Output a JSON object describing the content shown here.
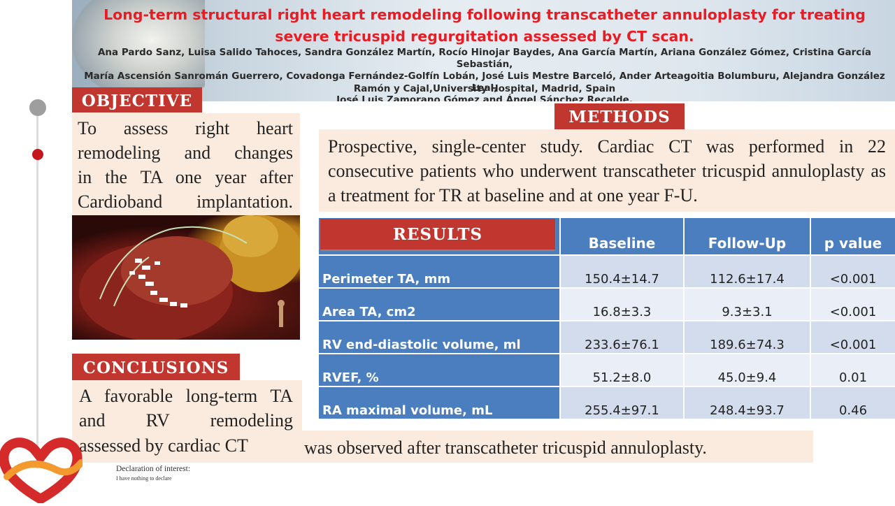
{
  "header": {
    "title": "Long-term structural right heart remodeling following transcatheter annuloplasty for treating severe tricuspid regurgitation assessed by CT scan.",
    "authors_line1": "Ana Pardo Sanz, Luisa Salido Tahoces, Sandra González Martín, Rocío Hinojar Baydes, Ana García Martín, Ariana González Gómez, Cristina García Sebastián,",
    "authors_line2": "María Ascensión Sanromán Guerrero, Covadonga Fernández-Golfín Lobán, José Luis Mestre Barceló, Ander Arteagoitia Bolumburu, Alejandra González Leal,",
    "authors_line3": "José Luis Zamorano Gómez and Ángel Sánchez Recalde.",
    "affiliation": "Ramón y Cajal,University Hospital, Madrid, Spain"
  },
  "objective": {
    "heading": "OBJECTIVE",
    "lines": [
      "To assess right heart",
      "remodeling and changes",
      "in the TA one year after"
    ],
    "last_line": "Cardioband implantation."
  },
  "methods": {
    "heading": "METHODS",
    "text": "Prospective, single-center study. Cardiac CT was performed in 22 consecutive patients who underwent transcatheter tricuspid annuloplasty  as a treatment for TR at baseline and at one year F-U."
  },
  "results": {
    "heading": "RESULTS",
    "columns": [
      "Baseline",
      "Follow-Up",
      "p value"
    ],
    "rows": [
      {
        "label": "Perimeter TA, mm",
        "baseline": "150.4±14.7",
        "followup": "112.6±17.4",
        "p": "<0.001"
      },
      {
        "label": "Area TA, cm2",
        "baseline": "16.8±3.3",
        "followup": "9.3±3.1",
        "p": "<0.001"
      },
      {
        "label": "RV end-diastolic volume, ml",
        "baseline": "233.6±76.1",
        "followup": "189.6±74.3",
        "p": "<0.001"
      },
      {
        "label": "RVEF, %",
        "baseline": "51.2±8.0",
        "followup": "45.0±9.4",
        "p": "0.01"
      },
      {
        "label": "RA maximal volume, mL",
        "baseline": "255.4±97.1",
        "followup": "248.4±93.7",
        "p": "0.46"
      }
    ]
  },
  "conclusions": {
    "heading": "CONCLUSIONS",
    "line1": "A favorable long-term TA",
    "line2": "and RV remodeling",
    "line3": "assessed by cardiac CT",
    "line4": "was observed after transcatheter tricuspid annuloplasty."
  },
  "declaration": {
    "title": "Declaration of interest:",
    "text": "I have nothing to declare"
  },
  "colors": {
    "title_red": "#e81c24",
    "section_red": "#c1372f",
    "table_blue": "#4a7ebf",
    "box_peach": "#fbebde"
  }
}
